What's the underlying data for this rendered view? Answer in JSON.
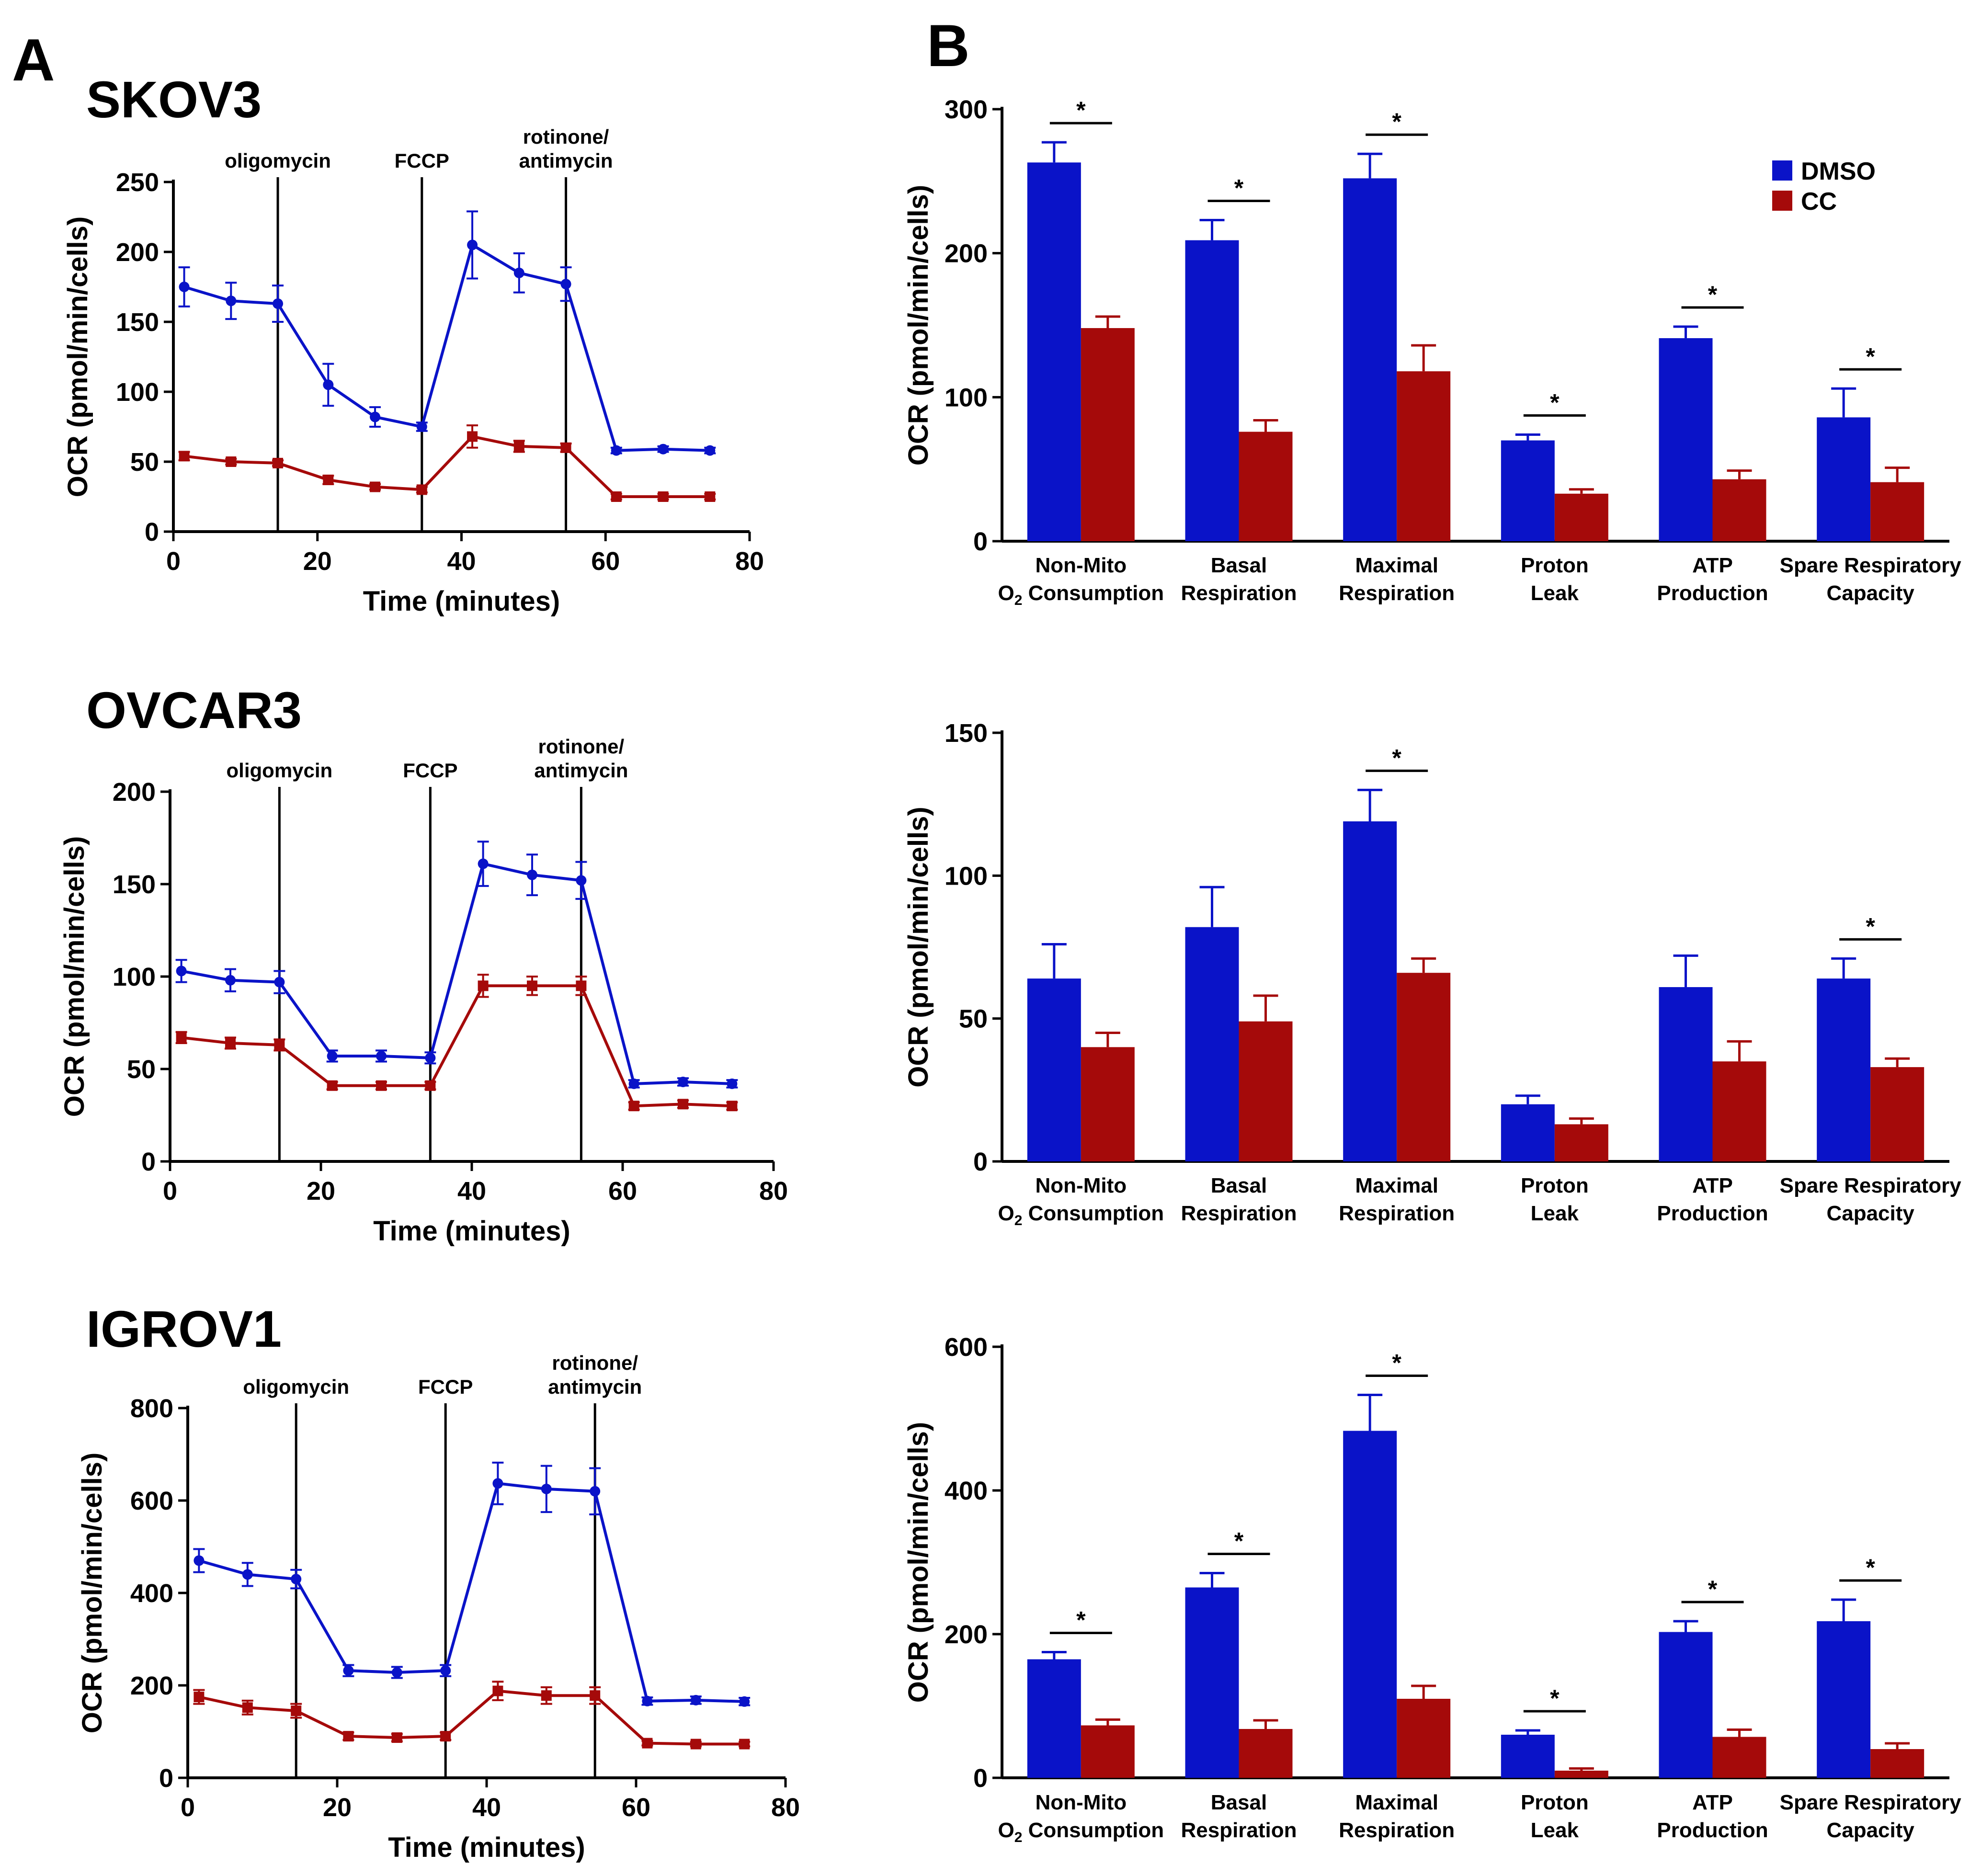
{
  "panels": {
    "A": "A",
    "B": "B"
  },
  "colors": {
    "dmso": "#0a13c8",
    "cc": "#a50a0a",
    "axis": "#000000"
  },
  "legend": {
    "dmso": "DMSO",
    "cc": "CC"
  },
  "chart_data": [
    {
      "type": "line",
      "title": "SKOV3",
      "xlabel": "Time (minutes)",
      "ylabel": "OCR (pmol/min/cells)",
      "xlim": [
        0,
        80
      ],
      "ylim": [
        0,
        250
      ],
      "xticks": [
        0,
        20,
        40,
        60,
        80
      ],
      "yticks": [
        0,
        50,
        100,
        150,
        200,
        250
      ],
      "injections": [
        {
          "x": 14.5,
          "label": [
            "oligomycin"
          ]
        },
        {
          "x": 34.5,
          "label": [
            "FCCP"
          ]
        },
        {
          "x": 54.5,
          "label": [
            "rotinone/",
            "antimycin"
          ]
        }
      ],
      "x": [
        1.5,
        8,
        14.5,
        21.5,
        28,
        34.5,
        41.5,
        48,
        54.5,
        61.5,
        68,
        74.5
      ],
      "series": [
        {
          "name": "DMSO",
          "values": [
            175,
            165,
            163,
            105,
            82,
            75,
            205,
            185,
            177,
            58,
            59,
            58
          ],
          "errors": [
            14,
            13,
            13,
            15,
            7,
            3,
            24,
            14,
            12,
            2,
            2,
            2
          ]
        },
        {
          "name": "CC",
          "values": [
            54,
            50,
            49,
            37,
            32,
            30,
            68,
            61,
            60,
            25,
            25,
            25
          ],
          "errors": [
            3,
            2,
            2,
            3,
            2,
            2,
            8,
            4,
            3,
            2,
            2,
            2
          ]
        }
      ]
    },
    {
      "type": "line",
      "title": "OVCAR3",
      "xlabel": "Time (minutes)",
      "ylabel": "OCR (pmol/min/cells)",
      "xlim": [
        0,
        80
      ],
      "ylim": [
        0,
        200
      ],
      "xticks": [
        0,
        20,
        40,
        60,
        80
      ],
      "yticks": [
        0,
        50,
        100,
        150,
        200
      ],
      "injections": [
        {
          "x": 14.5,
          "label": [
            "oligomycin"
          ]
        },
        {
          "x": 34.5,
          "label": [
            "FCCP"
          ]
        },
        {
          "x": 54.5,
          "label": [
            "rotinone/",
            "antimycin"
          ]
        }
      ],
      "x": [
        1.5,
        8,
        14.5,
        21.5,
        28,
        34.5,
        41.5,
        48,
        54.5,
        61.5,
        68,
        74.5
      ],
      "series": [
        {
          "name": "DMSO",
          "values": [
            103,
            98,
            97,
            57,
            57,
            56,
            161,
            155,
            152,
            42,
            43,
            42
          ],
          "errors": [
            6,
            6,
            6,
            3,
            3,
            3,
            12,
            11,
            10,
            2,
            2,
            2
          ]
        },
        {
          "name": "CC",
          "values": [
            67,
            64,
            63,
            41,
            41,
            41,
            95,
            95,
            95,
            30,
            31,
            30
          ],
          "errors": [
            3,
            3,
            3,
            2,
            2,
            2,
            6,
            5,
            5,
            2,
            2,
            2
          ]
        }
      ]
    },
    {
      "type": "line",
      "title": "IGROV1",
      "xlabel": "Time (minutes)",
      "ylabel": "OCR (pmol/min/cells)",
      "xlim": [
        0,
        80
      ],
      "ylim": [
        0,
        800
      ],
      "xticks": [
        0,
        20,
        40,
        60,
        80
      ],
      "yticks": [
        0,
        200,
        400,
        600,
        800
      ],
      "injections": [
        {
          "x": 14.5,
          "label": [
            "oligomycin"
          ]
        },
        {
          "x": 34.5,
          "label": [
            "FCCP"
          ]
        },
        {
          "x": 54.5,
          "label": [
            "rotinone/",
            "antimycin"
          ]
        }
      ],
      "x": [
        1.5,
        8,
        14.5,
        21.5,
        28,
        34.5,
        41.5,
        48,
        54.5,
        61.5,
        68,
        74.5
      ],
      "series": [
        {
          "name": "DMSO",
          "values": [
            470,
            440,
            430,
            232,
            228,
            232,
            637,
            625,
            620,
            166,
            168,
            165
          ],
          "errors": [
            25,
            25,
            20,
            12,
            12,
            12,
            45,
            50,
            50,
            8,
            8,
            8
          ]
        },
        {
          "name": "CC",
          "values": [
            175,
            152,
            145,
            90,
            87,
            90,
            188,
            178,
            178,
            75,
            73,
            73
          ],
          "errors": [
            15,
            15,
            15,
            8,
            8,
            8,
            20,
            18,
            18,
            5,
            5,
            5
          ]
        }
      ]
    },
    {
      "type": "bar",
      "ylabel": "OCR (pmol/min/cells)",
      "ylim": [
        0,
        300
      ],
      "yticks": [
        0,
        100,
        200,
        300
      ],
      "categories": [
        [
          "Non-Mito",
          "O2 Consumption"
        ],
        [
          "Basal",
          "Respiration"
        ],
        [
          "Maximal",
          "Respiration"
        ],
        [
          "Proton",
          "Leak"
        ],
        [
          "ATP",
          "Production"
        ],
        [
          "Spare Respiratory",
          "Capacity"
        ]
      ],
      "series": [
        {
          "name": "DMSO",
          "values": [
            263,
            209,
            252,
            70,
            141,
            86
          ],
          "errors": [
            14,
            14,
            17,
            4,
            8,
            20
          ]
        },
        {
          "name": "CC",
          "values": [
            148,
            76,
            118,
            33,
            43,
            41
          ],
          "errors": [
            8,
            8,
            18,
            3,
            6,
            10
          ]
        }
      ],
      "significant": [
        true,
        true,
        true,
        true,
        true,
        true
      ]
    },
    {
      "type": "bar",
      "ylabel": "OCR (pmol/min/cells)",
      "ylim": [
        0,
        150
      ],
      "yticks": [
        0,
        50,
        100,
        150
      ],
      "categories": [
        [
          "Non-Mito",
          "O2 Consumption"
        ],
        [
          "Basal",
          "Respiration"
        ],
        [
          "Maximal",
          "Respiration"
        ],
        [
          "Proton",
          "Leak"
        ],
        [
          "ATP",
          "Production"
        ],
        [
          "Spare Respiratory",
          "Capacity"
        ]
      ],
      "series": [
        {
          "name": "DMSO",
          "values": [
            64,
            82,
            119,
            20,
            61,
            64
          ],
          "errors": [
            12,
            14,
            11,
            3,
            11,
            7
          ]
        },
        {
          "name": "CC",
          "values": [
            40,
            49,
            66,
            13,
            35,
            33
          ],
          "errors": [
            5,
            9,
            5,
            2,
            7,
            3
          ]
        }
      ],
      "significant": [
        false,
        false,
        true,
        false,
        false,
        true
      ]
    },
    {
      "type": "bar",
      "ylabel": "OCR (pmol/min/cells)",
      "ylim": [
        0,
        600
      ],
      "yticks": [
        0,
        200,
        400,
        600
      ],
      "categories": [
        [
          "Non-Mito",
          "O2 Consumption"
        ],
        [
          "Basal",
          "Respiration"
        ],
        [
          "Maximal",
          "Respiration"
        ],
        [
          "Proton",
          "Leak"
        ],
        [
          "ATP",
          "Production"
        ],
        [
          "Spare Respiratory",
          "Capacity"
        ]
      ],
      "series": [
        {
          "name": "DMSO",
          "values": [
            165,
            265,
            483,
            60,
            203,
            218
          ],
          "errors": [
            10,
            20,
            50,
            6,
            15,
            30
          ]
        },
        {
          "name": "CC",
          "values": [
            73,
            68,
            110,
            10,
            57,
            40
          ],
          "errors": [
            8,
            12,
            18,
            3,
            10,
            8
          ]
        }
      ],
      "significant": [
        true,
        true,
        true,
        true,
        true,
        true
      ]
    }
  ]
}
